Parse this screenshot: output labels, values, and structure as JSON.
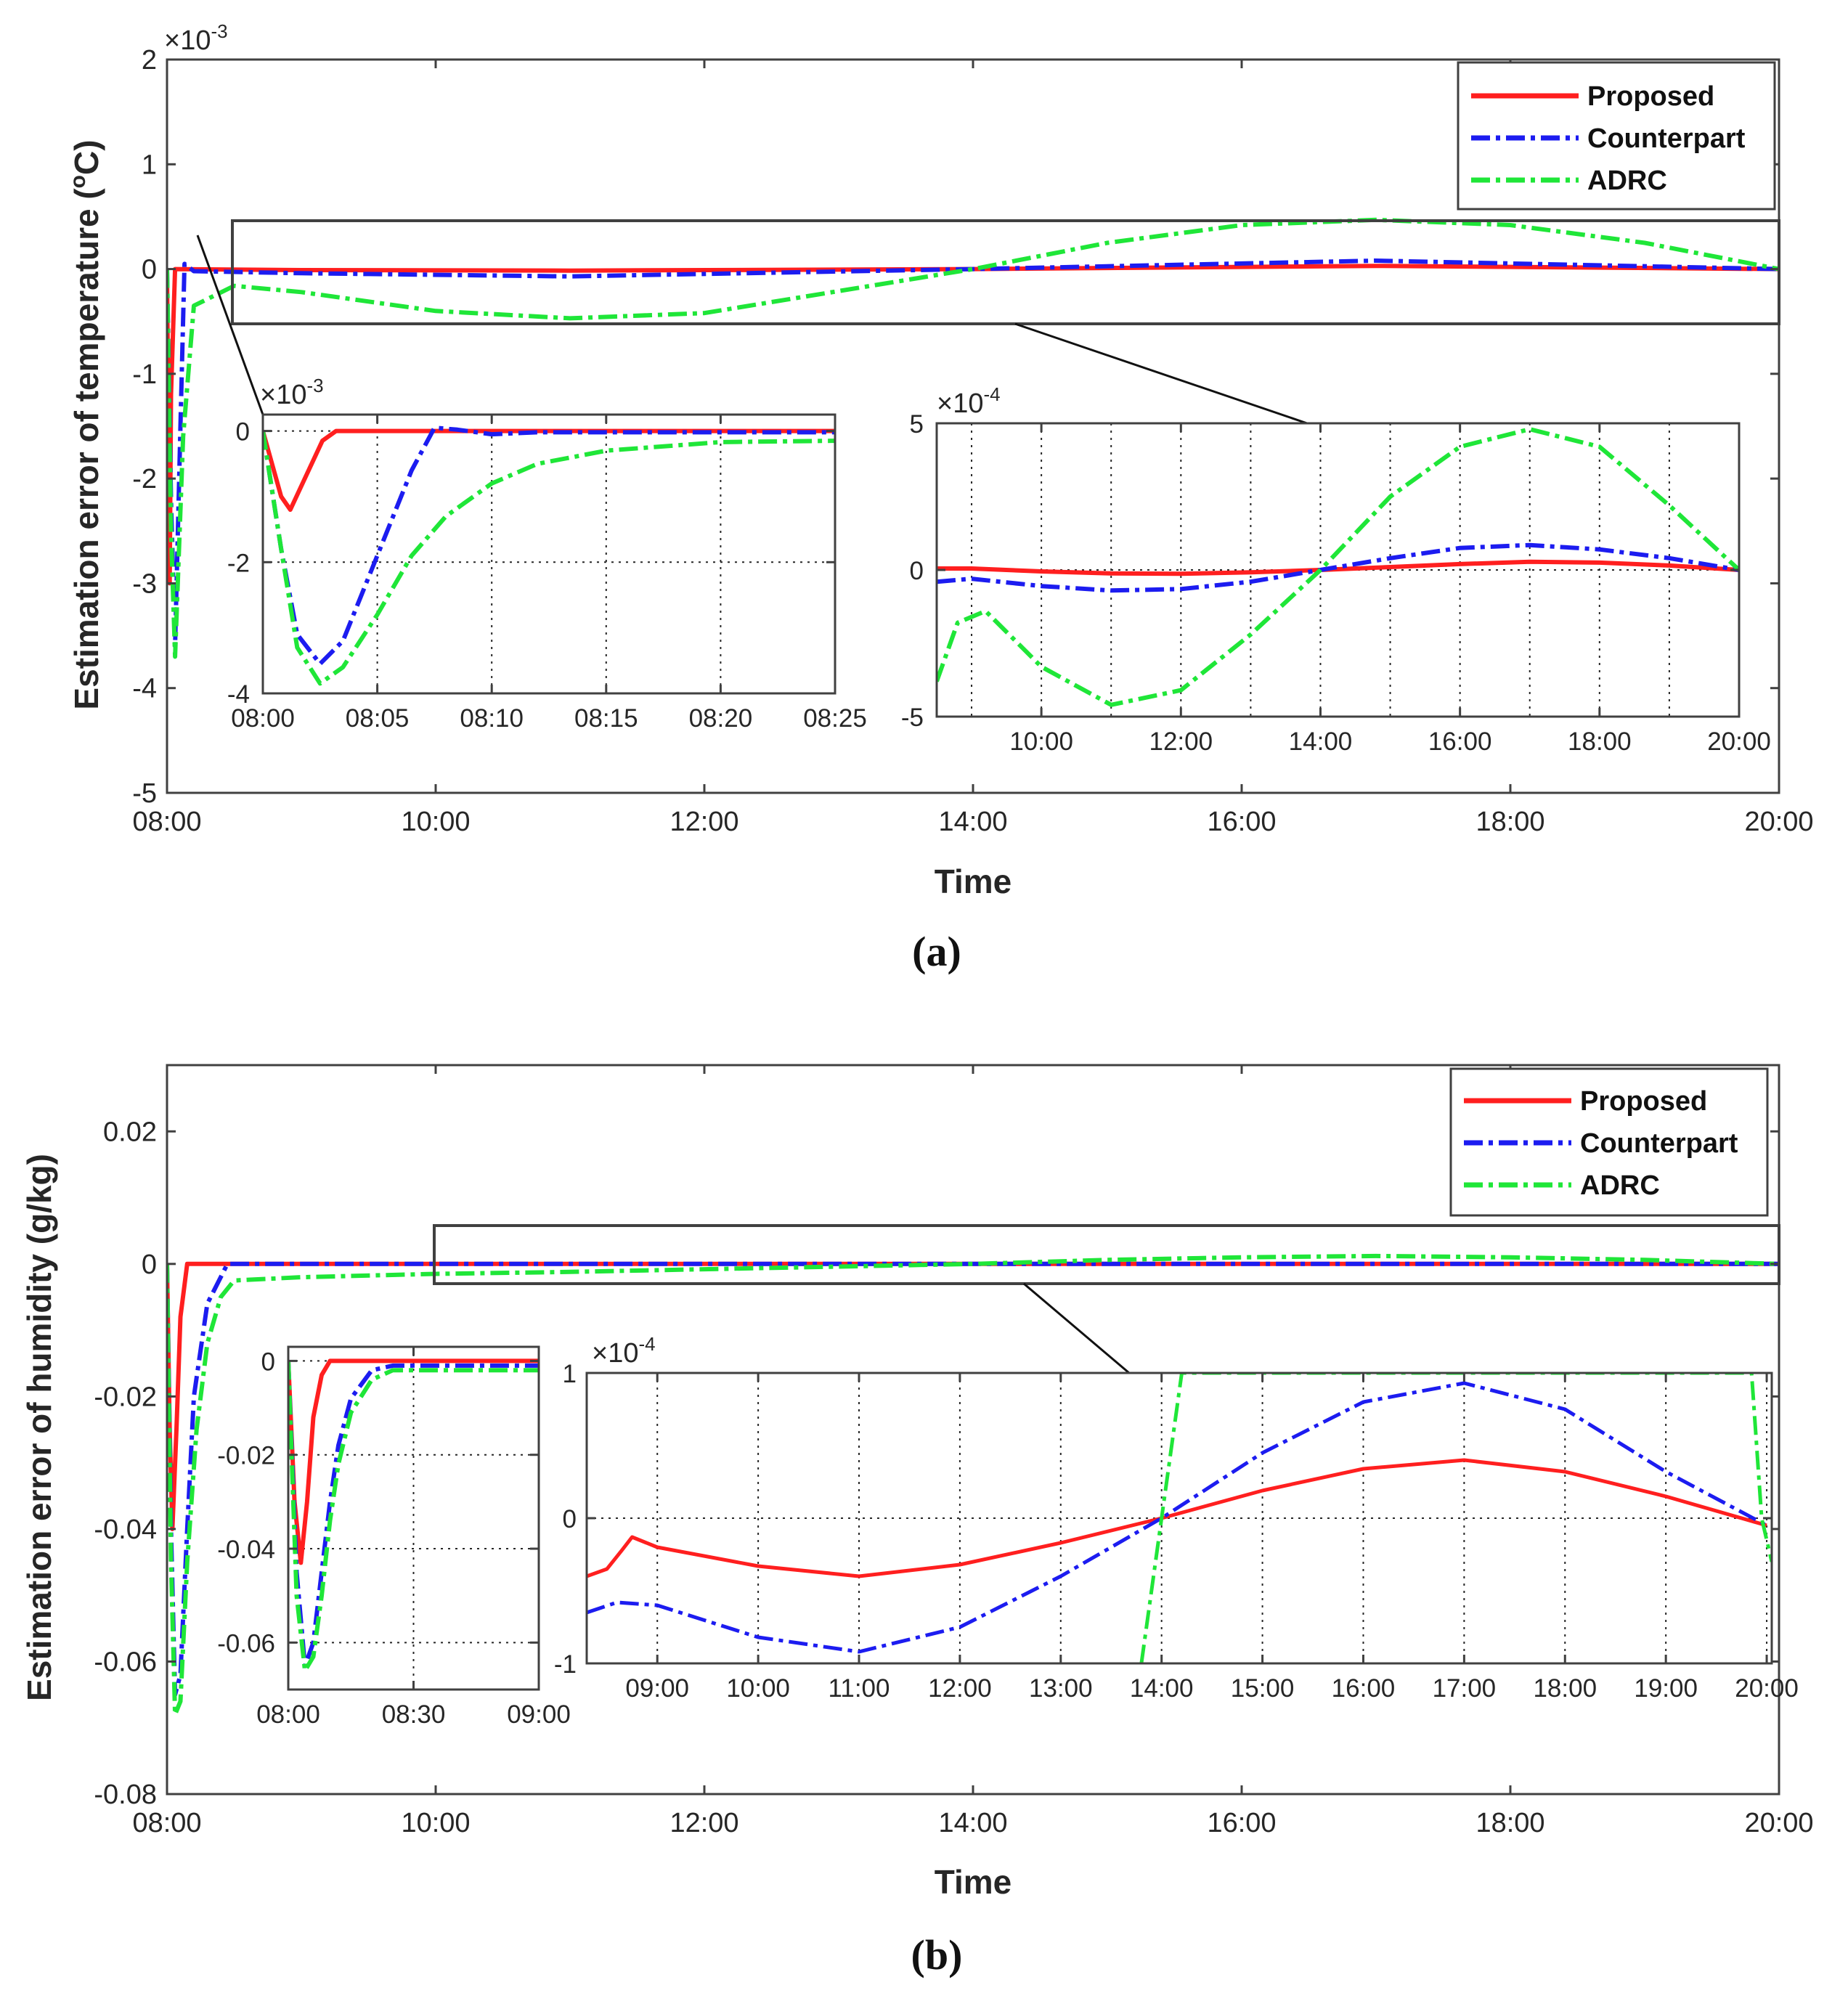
{
  "colors": {
    "proposed": "#ff1f1f",
    "counterpart": "#1c1cf0",
    "adrc": "#1fe638",
    "axis": "#404040",
    "grid": "#262626"
  },
  "legend": [
    "Proposed",
    "Counterpart",
    "ADRC"
  ],
  "captions": {
    "a": "(a)",
    "b": "(b)"
  },
  "chart_data": [
    {
      "id": "a-main",
      "type": "line",
      "title": "",
      "xlabel": "Time",
      "ylabel": "Estimation error of temperature (°C)",
      "ylabel_parts": {
        "pre": "Estimation error of temperature (",
        "sup": "o",
        "post": "C)"
      },
      "multiplier": {
        "base": "×10",
        "exp": "-3"
      },
      "xlim": [
        8,
        20
      ],
      "ylim": [
        -5,
        2
      ],
      "xticks": [
        8,
        10,
        12,
        14,
        16,
        18,
        20
      ],
      "xticklabels": [
        "08:00",
        "10:00",
        "12:00",
        "14:00",
        "16:00",
        "18:00",
        "20:00"
      ],
      "yticks": [
        2,
        1,
        0,
        -1,
        -2,
        -3,
        -4,
        -5
      ],
      "yticklabels": [
        "2",
        "1",
        "0",
        "-1",
        "-2",
        "-3",
        "-4",
        "-5"
      ],
      "grid": false,
      "legend_position": "top-right",
      "series": [
        {
          "name": "Proposed",
          "x": [
            8,
            8.02,
            8.03,
            8.06,
            9,
            11,
            14,
            17,
            20
          ],
          "y": [
            0,
            -3.0,
            -1.2,
            0,
            -0.01,
            -0.015,
            0,
            0.03,
            0
          ]
        },
        {
          "name": "Counterpart",
          "x": [
            8,
            8.03,
            8.06,
            8.1,
            8.13,
            8.2,
            9,
            11,
            14,
            17,
            20
          ],
          "y": [
            0,
            -2.2,
            -3.6,
            -1.5,
            0.05,
            -0.02,
            -0.04,
            -0.07,
            0,
            0.08,
            0
          ]
        },
        {
          "name": "ADRC",
          "x": [
            8,
            8.03,
            8.06,
            8.12,
            8.2,
            8.5,
            9,
            10,
            11,
            12,
            14,
            15,
            16,
            17,
            18,
            19,
            20
          ],
          "y": [
            0,
            -2.5,
            -3.7,
            -1.6,
            -0.35,
            -0.16,
            -0.22,
            -0.4,
            -0.47,
            -0.42,
            0,
            0.25,
            0.42,
            0.47,
            0.42,
            0.25,
            0
          ]
        }
      ]
    },
    {
      "id": "a-inset1",
      "type": "line",
      "multiplier": {
        "base": "×10",
        "exp": "-3"
      },
      "xlim": [
        0,
        25
      ],
      "ylim": [
        -4,
        0.25
      ],
      "xticks": [
        0,
        5,
        10,
        15,
        20,
        25
      ],
      "xticklabels": [
        "08:00",
        "08:05",
        "08:10",
        "08:15",
        "08:20",
        "08:25"
      ],
      "yticks": [
        0,
        -2,
        -4
      ],
      "yticklabels": [
        "0",
        "-2",
        "-4"
      ],
      "grid": true,
      "series": [
        {
          "name": "Proposed",
          "x": [
            0,
            0.8,
            1.2,
            1.8,
            2.6,
            3.2,
            25
          ],
          "y": [
            0,
            -1.0,
            -1.2,
            -0.75,
            -0.15,
            0,
            0
          ]
        },
        {
          "name": "Counterpart",
          "x": [
            0,
            0.8,
            1.5,
            2.5,
            3.5,
            5,
            6.5,
            7.5,
            8.5,
            10,
            12,
            25
          ],
          "y": [
            0,
            -1.8,
            -3.1,
            -3.55,
            -3.2,
            -1.9,
            -0.6,
            0.05,
            0.02,
            -0.05,
            -0.02,
            -0.02
          ]
        },
        {
          "name": "ADRC",
          "x": [
            0,
            0.8,
            1.5,
            2.5,
            3.5,
            5,
            6.5,
            8,
            10,
            12,
            15,
            20,
            25
          ],
          "y": [
            0,
            -1.8,
            -3.3,
            -3.85,
            -3.6,
            -2.8,
            -1.9,
            -1.3,
            -0.8,
            -0.5,
            -0.3,
            -0.17,
            -0.15
          ]
        }
      ]
    },
    {
      "id": "a-inset2",
      "type": "line",
      "multiplier": {
        "base": "×10",
        "exp": "-4"
      },
      "xlim": [
        8.5,
        20
      ],
      "ylim": [
        -5,
        5
      ],
      "xticks": [
        10,
        12,
        14,
        16,
        18,
        20
      ],
      "xticklabels": [
        "10:00",
        "12:00",
        "14:00",
        "16:00",
        "18:00",
        "20:00"
      ],
      "gridx": [
        9,
        10,
        11,
        12,
        13,
        14,
        15,
        16,
        17,
        18,
        19
      ],
      "yticks": [
        5,
        0,
        -5
      ],
      "yticklabels": [
        "5",
        "0",
        "-5"
      ],
      "grid": true,
      "series": [
        {
          "name": "Proposed",
          "x": [
            8.5,
            9,
            10,
            11,
            12,
            13,
            14,
            15,
            16,
            17,
            18,
            19,
            20
          ],
          "y": [
            0.05,
            0.05,
            -0.05,
            -0.12,
            -0.13,
            -0.08,
            0,
            0.1,
            0.2,
            0.28,
            0.25,
            0.15,
            0
          ]
        },
        {
          "name": "Counterpart",
          "x": [
            8.5,
            9,
            10,
            11,
            12,
            13,
            14,
            15,
            16,
            17,
            18,
            19,
            20
          ],
          "y": [
            -0.4,
            -0.3,
            -0.55,
            -0.7,
            -0.65,
            -0.4,
            0,
            0.4,
            0.75,
            0.85,
            0.7,
            0.4,
            0
          ]
        },
        {
          "name": "ADRC",
          "x": [
            8.5,
            8.8,
            9.2,
            10,
            11,
            12,
            13,
            14,
            15,
            16,
            17,
            18,
            19,
            20
          ],
          "y": [
            -3.8,
            -1.8,
            -1.4,
            -3.3,
            -4.6,
            -4.1,
            -2.2,
            0,
            2.5,
            4.2,
            4.8,
            4.2,
            2.2,
            0
          ]
        }
      ]
    },
    {
      "id": "b-main",
      "type": "line",
      "xlabel": "Time",
      "ylabel": "Estimation error of humidity (g/kg)",
      "xlim": [
        8,
        20
      ],
      "ylim": [
        -0.08,
        0.03
      ],
      "xticks": [
        8,
        10,
        12,
        14,
        16,
        18,
        20
      ],
      "xticklabels": [
        "08:00",
        "10:00",
        "12:00",
        "14:00",
        "16:00",
        "18:00",
        "20:00"
      ],
      "yticks": [
        0.02,
        0,
        -0.02,
        -0.04,
        -0.06,
        -0.08
      ],
      "yticklabels": [
        "0.02",
        "0",
        "-0.02",
        "-0.04",
        "-0.06",
        "-0.08"
      ],
      "grid": false,
      "legend_position": "top-right",
      "series": [
        {
          "name": "Proposed",
          "x": [
            8,
            8.02,
            8.04,
            8.07,
            8.1,
            8.15,
            20
          ],
          "y": [
            0,
            -0.025,
            -0.04,
            -0.025,
            -0.008,
            0,
            0
          ]
        },
        {
          "name": "Counterpart",
          "x": [
            8,
            8.03,
            8.06,
            8.1,
            8.15,
            8.2,
            8.3,
            8.45,
            20
          ],
          "y": [
            0,
            -0.04,
            -0.065,
            -0.062,
            -0.04,
            -0.02,
            -0.006,
            0,
            0
          ]
        },
        {
          "name": "ADRC",
          "x": [
            8,
            8.03,
            8.06,
            8.1,
            8.15,
            8.22,
            8.3,
            8.4,
            8.5,
            9,
            10,
            11,
            12,
            13,
            14,
            15,
            16,
            17,
            18,
            19,
            20
          ],
          "y": [
            0,
            -0.045,
            -0.068,
            -0.066,
            -0.045,
            -0.025,
            -0.012,
            -0.005,
            -0.0025,
            -0.002,
            -0.0015,
            -0.0012,
            -0.0008,
            -0.0004,
            0,
            0.0006,
            0.001,
            0.0012,
            0.001,
            0.0006,
            0
          ]
        }
      ]
    },
    {
      "id": "b-inset1",
      "type": "line",
      "xlim": [
        0,
        60
      ],
      "ylim": [
        -0.07,
        0.003
      ],
      "xticks": [
        0,
        30,
        60
      ],
      "xticklabels": [
        "08:00",
        "08:30",
        "09:00"
      ],
      "yticks": [
        0,
        -0.02,
        -0.04,
        -0.06
      ],
      "yticklabels": [
        "0",
        "-0.02",
        "-0.04",
        "-0.06"
      ],
      "grid": true,
      "series": [
        {
          "name": "Proposed",
          "x": [
            0,
            1.5,
            3,
            4.5,
            6,
            8,
            10,
            60
          ],
          "y": [
            0,
            -0.03,
            -0.043,
            -0.03,
            -0.012,
            -0.003,
            0,
            0
          ]
        },
        {
          "name": "Counterpart",
          "x": [
            0,
            2,
            4,
            6,
            8,
            10,
            12,
            15,
            20,
            25,
            60
          ],
          "y": [
            0,
            -0.045,
            -0.065,
            -0.06,
            -0.045,
            -0.03,
            -0.018,
            -0.008,
            -0.002,
            -0.001,
            -0.001
          ]
        },
        {
          "name": "ADRC",
          "x": [
            0,
            2,
            4,
            6,
            8,
            10,
            12,
            15,
            20,
            25,
            60
          ],
          "y": [
            0,
            -0.05,
            -0.066,
            -0.063,
            -0.05,
            -0.034,
            -0.022,
            -0.011,
            -0.004,
            -0.002,
            -0.002
          ]
        }
      ]
    },
    {
      "id": "b-inset2",
      "type": "line",
      "multiplier": {
        "base": "×10",
        "exp": "-4"
      },
      "xlim": [
        8.3,
        20.05
      ],
      "ylim": [
        -1,
        1
      ],
      "xticks": [
        9,
        10,
        11,
        12,
        13,
        14,
        15,
        16,
        17,
        18,
        19,
        20
      ],
      "xticklabels": [
        "09:00",
        "10:00",
        "11:00",
        "12:00",
        "13:00",
        "14:00",
        "15:00",
        "16:00",
        "17:00",
        "18:00",
        "19:00",
        "20:00"
      ],
      "yticks": [
        1,
        0,
        -1
      ],
      "yticklabels": [
        "1",
        "0",
        "-1"
      ],
      "grid": true,
      "series": [
        {
          "name": "Proposed",
          "x": [
            8.3,
            8.5,
            8.65,
            8.75,
            9,
            10,
            11,
            12,
            13,
            14,
            15,
            16,
            17,
            18,
            19,
            20
          ],
          "y": [
            -0.4,
            -0.35,
            -0.22,
            -0.13,
            -0.2,
            -0.33,
            -0.4,
            -0.32,
            -0.17,
            0,
            0.19,
            0.34,
            0.4,
            0.32,
            0.15,
            -0.05
          ]
        },
        {
          "name": "Counterpart",
          "x": [
            8.3,
            8.6,
            9,
            10,
            11,
            12,
            13,
            14,
            15,
            16,
            17,
            18,
            19,
            20
          ],
          "y": [
            -0.65,
            -0.58,
            -0.6,
            -0.82,
            -0.92,
            -0.75,
            -0.4,
            0,
            0.45,
            0.8,
            0.93,
            0.75,
            0.32,
            -0.05
          ]
        },
        {
          "name": "ADRC",
          "x": [
            13.8,
            14,
            14.2,
            19.85,
            19.95,
            20.05
          ],
          "y": [
            -1,
            0,
            1,
            1,
            0,
            -0.3
          ]
        }
      ]
    }
  ]
}
